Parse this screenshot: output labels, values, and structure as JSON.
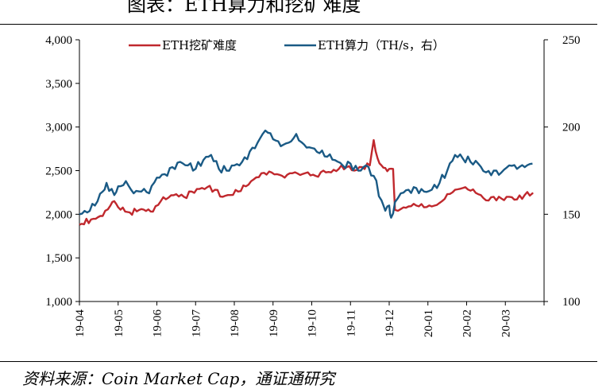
{
  "page": {
    "title_fragment": "图表：ETH算力和挖矿难度",
    "source_text": "资料来源：Coin Market Cap，通证通研究"
  },
  "chart_data": {
    "type": "line",
    "title": "",
    "x_ticks": [
      "19-04",
      "19-05",
      "19-06",
      "19-07",
      "19-08",
      "19-09",
      "19-10",
      "19-11",
      "19-12",
      "20-01",
      "20-02",
      "20-03"
    ],
    "y_left": {
      "ticks": [
        "1,000",
        "1,500",
        "2,000",
        "2,500",
        "3,000",
        "3,500",
        "4,000"
      ],
      "range": [
        1000,
        4000
      ]
    },
    "y_right": {
      "ticks": [
        "100",
        "150",
        "200",
        "250"
      ],
      "range": [
        100,
        250
      ]
    },
    "grid": false,
    "legend": {
      "position": "top"
    },
    "series": [
      {
        "name": "ETH挖矿难度",
        "axis": "left",
        "color": "#c0282d",
        "points": [
          [
            0,
            1880
          ],
          [
            0.3,
            1940
          ],
          [
            0.6,
            1980
          ],
          [
            0.8,
            2100
          ],
          [
            0.9,
            2150
          ],
          [
            1.0,
            2080
          ],
          [
            1.3,
            2020
          ],
          [
            1.6,
            2060
          ],
          [
            1.9,
            2030
          ],
          [
            2.1,
            2150
          ],
          [
            2.3,
            2190
          ],
          [
            2.5,
            2230
          ],
          [
            2.7,
            2200
          ],
          [
            2.9,
            2260
          ],
          [
            3.1,
            2290
          ],
          [
            3.3,
            2310
          ],
          [
            3.5,
            2280
          ],
          [
            3.7,
            2200
          ],
          [
            3.9,
            2220
          ],
          [
            4.1,
            2260
          ],
          [
            4.3,
            2320
          ],
          [
            4.5,
            2400
          ],
          [
            4.7,
            2470
          ],
          [
            4.9,
            2490
          ],
          [
            5.1,
            2460
          ],
          [
            5.3,
            2420
          ],
          [
            5.5,
            2470
          ],
          [
            5.7,
            2450
          ],
          [
            5.9,
            2480
          ],
          [
            6.1,
            2440
          ],
          [
            6.3,
            2500
          ],
          [
            6.5,
            2480
          ],
          [
            6.7,
            2520
          ],
          [
            6.9,
            2540
          ],
          [
            7.1,
            2500
          ],
          [
            7.3,
            2540
          ],
          [
            7.5,
            2560
          ],
          [
            7.6,
            2850
          ],
          [
            7.7,
            2640
          ],
          [
            7.8,
            2560
          ],
          [
            7.9,
            2530
          ],
          [
            8.0,
            2520
          ],
          [
            8.1,
            2520
          ],
          [
            8.15,
            2050
          ],
          [
            8.3,
            2060
          ],
          [
            8.5,
            2090
          ],
          [
            8.7,
            2100
          ],
          [
            8.9,
            2080
          ],
          [
            9.1,
            2090
          ],
          [
            9.3,
            2130
          ],
          [
            9.5,
            2230
          ],
          [
            9.7,
            2280
          ],
          [
            9.9,
            2300
          ],
          [
            10.1,
            2270
          ],
          [
            10.3,
            2230
          ],
          [
            10.5,
            2160
          ],
          [
            10.7,
            2200
          ],
          [
            10.9,
            2180
          ],
          [
            11.1,
            2200
          ],
          [
            11.3,
            2170
          ],
          [
            11.5,
            2220
          ],
          [
            11.7,
            2240
          ],
          [
            11.7,
            2240
          ]
        ]
      },
      {
        "name": "ETH算力（TH/s，右）",
        "axis": "right",
        "color": "#1a5a85",
        "points": [
          [
            0,
            150
          ],
          [
            0.2,
            151
          ],
          [
            0.4,
            155
          ],
          [
            0.6,
            163
          ],
          [
            0.7,
            168
          ],
          [
            0.9,
            161
          ],
          [
            1.0,
            166
          ],
          [
            1.2,
            169
          ],
          [
            1.4,
            162
          ],
          [
            1.6,
            163
          ],
          [
            1.8,
            162
          ],
          [
            2.0,
            171
          ],
          [
            2.2,
            173
          ],
          [
            2.4,
            177
          ],
          [
            2.6,
            180
          ],
          [
            2.8,
            178
          ],
          [
            3.0,
            176
          ],
          [
            3.2,
            181
          ],
          [
            3.4,
            184
          ],
          [
            3.6,
            176
          ],
          [
            3.8,
            175
          ],
          [
            4.0,
            178
          ],
          [
            4.2,
            180
          ],
          [
            4.4,
            186
          ],
          [
            4.6,
            191
          ],
          [
            4.8,
            198
          ],
          [
            5.0,
            193
          ],
          [
            5.2,
            189
          ],
          [
            5.4,
            191
          ],
          [
            5.6,
            196
          ],
          [
            5.8,
            190
          ],
          [
            6.0,
            188
          ],
          [
            6.2,
            185
          ],
          [
            6.4,
            183
          ],
          [
            6.6,
            181
          ],
          [
            6.8,
            178
          ],
          [
            7.0,
            179
          ],
          [
            7.2,
            175
          ],
          [
            7.4,
            178
          ],
          [
            7.6,
            172
          ],
          [
            7.8,
            158
          ],
          [
            7.9,
            152
          ],
          [
            8.0,
            155
          ],
          [
            8.05,
            148
          ],
          [
            8.15,
            157
          ],
          [
            8.3,
            162
          ],
          [
            8.5,
            164
          ],
          [
            8.7,
            165
          ],
          [
            8.9,
            163
          ],
          [
            9.1,
            164
          ],
          [
            9.3,
            168
          ],
          [
            9.5,
            175
          ],
          [
            9.7,
            184
          ],
          [
            9.9,
            182
          ],
          [
            10.1,
            180
          ],
          [
            10.3,
            179
          ],
          [
            10.5,
            174
          ],
          [
            10.7,
            175
          ],
          [
            10.9,
            174
          ],
          [
            11.1,
            178
          ],
          [
            11.3,
            176
          ],
          [
            11.5,
            177
          ],
          [
            11.7,
            179
          ]
        ]
      }
    ]
  }
}
